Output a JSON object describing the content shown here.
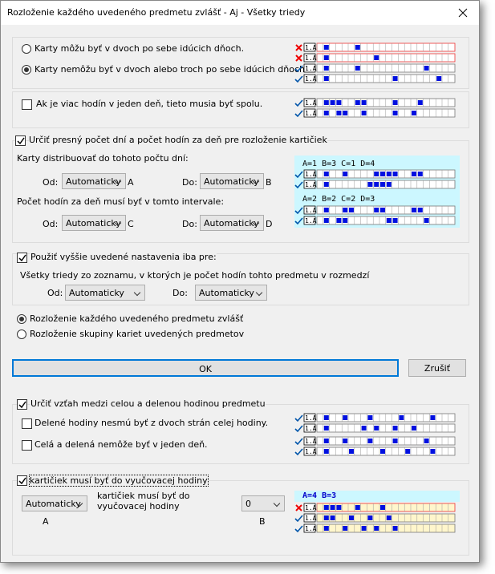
{
  "window": {
    "title": "Rozloženie každého uvedeného predmetu zvlášť - Aj - Všetky triedy"
  },
  "group1": {
    "radio1": "Karty môžu byť v dvoch po sebe idúcich dňoch.",
    "radio2": "Karty nemôžu byť v dvoch alebo troch po sebe idúcich dňoch."
  },
  "group2": {
    "check": "Ak je viac hodín v jeden deň, tieto musia byť spolu."
  },
  "group3": {
    "check": "Určiť presný počet dní a počet hodín za deň pre rozloženie kartičiek",
    "days_label": "Karty distribuovať do tohoto počtu dní:",
    "from1": "Od:",
    "select_a": "Automaticky",
    "a": "A",
    "to1": "Do:",
    "select_b": "Automaticky",
    "b": "B",
    "hours_label": "Počet hodín za deň musí byť v tomto intervale:",
    "from2": "Od:",
    "select_c": "Automaticky",
    "c": "C",
    "to2": "Do:",
    "select_d": "Automaticky",
    "d": "D",
    "example1": "A=1 B=3 C=1 D=4",
    "example2": "A=2 B=2 C=2 D=3"
  },
  "group4": {
    "check": "Použiť vyššie uvedené nastavenia iba pre:",
    "text": "Všetky triedy zo zoznamu, v ktorých je počet hodín tohto predmetu v rozmedzí",
    "from": "Od:",
    "select_from": "Automaticky",
    "to": "Do:",
    "select_to": "Automaticky"
  },
  "mode": {
    "radio1": "Rozloženie každého uvedeného predmetu zvlášť",
    "radio2": "Rozloženie skupiny kariet uvedených predmetov"
  },
  "buttons": {
    "ok": "OK",
    "cancel": "Zrušiť"
  },
  "group5": {
    "check": "Určiť vzťah medzi celou a delenou hodinou predmetu",
    "check1": "Delené hodiny nesmú byť z dvoch strán celej hodiny.",
    "check2": "Celá a delená nemôže byť v jeden deň."
  },
  "group6": {
    "check": "kartičiek musí byť do vyučovacej hodiny",
    "select_a": "Automaticky",
    "a": "A",
    "text": "kartičiek musí byť do vyučovacej hodiny",
    "select_b": "0",
    "b": "B",
    "example": "A=4 B=3"
  },
  "illustration_label": "1.A"
}
